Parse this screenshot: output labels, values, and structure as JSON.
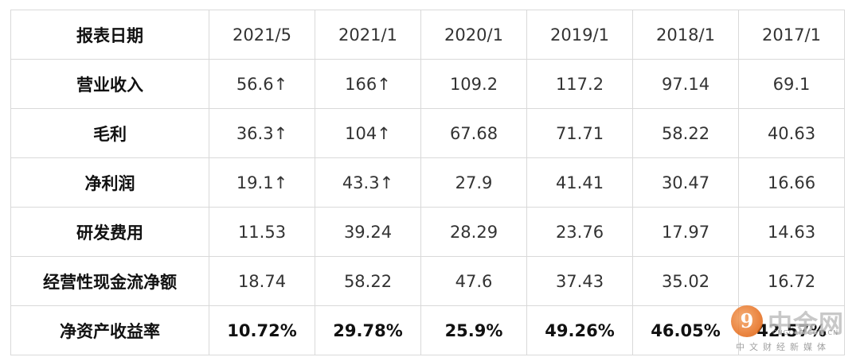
{
  "table": {
    "header": [
      "报表日期",
      "2021/5",
      "2021/1",
      "2020/1",
      "2019/1",
      "2018/1",
      "2017/1"
    ],
    "rows": [
      {
        "label": "营业收入",
        "values": [
          "56.6↑",
          "166↑",
          "109.2",
          "117.2",
          "97.14",
          "69.1"
        ]
      },
      {
        "label": "毛利",
        "values": [
          "36.3↑",
          "104↑",
          "67.68",
          "71.71",
          "58.22",
          "40.63"
        ]
      },
      {
        "label": "净利润",
        "values": [
          "19.1↑",
          "43.3↑",
          "27.9",
          "41.41",
          "30.47",
          "16.66"
        ]
      },
      {
        "label": "研发费用",
        "values": [
          "11.53",
          "39.24",
          "28.29",
          "23.76",
          "17.97",
          "14.63"
        ]
      },
      {
        "label": "经营性现金流净额",
        "values": [
          "18.74",
          "58.22",
          "47.6",
          "37.43",
          "35.02",
          "16.72"
        ]
      },
      {
        "label": "净资产收益率",
        "values": [
          "10.72%",
          "29.78%",
          "25.9%",
          "49.26%",
          "46.05%",
          "42.57%"
        ]
      }
    ]
  },
  "watermark": {
    "brand": "中金网",
    "domain": "CNGOLD.COM.CN",
    "tagline": "中文财经新媒体",
    "symbol": "9",
    "accent": "#e76f1f"
  }
}
